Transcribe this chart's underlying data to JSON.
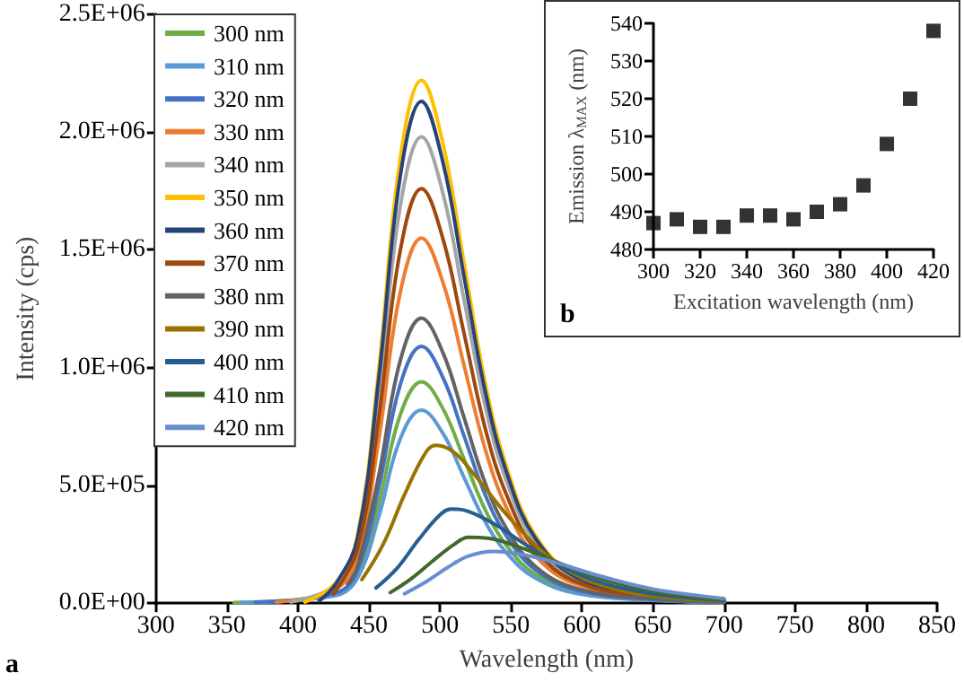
{
  "chart_data": [
    {
      "type": "line",
      "xlabel": "Wavelength (nm)",
      "ylabel": "Intensity (cps)",
      "annotations": [
        "a"
      ],
      "xlim": [
        300,
        850
      ],
      "xticks": [
        300,
        350,
        400,
        450,
        500,
        550,
        600,
        650,
        700,
        750,
        800,
        850
      ],
      "ylim": [
        0,
        2500000
      ],
      "yticks": [
        {
          "value": 0,
          "label": "0.0E+00"
        },
        {
          "value": 500000,
          "label": "5.0E+05"
        },
        {
          "value": 1000000,
          "label": "1.0E+06"
        },
        {
          "value": 1500000,
          "label": "1.5E+06"
        },
        {
          "value": 2000000,
          "label": "2.0E+06"
        },
        {
          "value": 2500000,
          "label": "2.5E+06"
        }
      ],
      "grid": false,
      "legend": "top left",
      "marker": "none",
      "line_style": "solid",
      "series": [
        {
          "name": "300 nm",
          "color": "#70ad47",
          "x": [
            355,
            427,
            442,
            457,
            472,
            487,
            502,
            517,
            532,
            547,
            567,
            597,
            650,
            700
          ],
          "values": [
            3000,
            38000,
            122000,
            423000,
            799000,
            940000,
            827000,
            611000,
            395000,
            244000,
            122000,
            47000,
            14000,
            5000
          ]
        },
        {
          "name": "310 nm",
          "color": "#5b9bd5",
          "x": [
            360,
            427,
            442,
            457,
            472,
            487,
            502,
            517,
            532,
            547,
            567,
            597,
            650,
            700
          ],
          "values": [
            3000,
            33000,
            107000,
            369000,
            697000,
            820000,
            722000,
            533000,
            344000,
            213000,
            107000,
            41000,
            12000,
            4000
          ]
        },
        {
          "name": "320 nm",
          "color": "#4472c4",
          "x": [
            370,
            427,
            442,
            457,
            472,
            487,
            502,
            517,
            532,
            547,
            567,
            597,
            650,
            700
          ],
          "values": [
            5000,
            44000,
            142000,
            491000,
            927000,
            1090000,
            959000,
            709000,
            458000,
            283000,
            142000,
            55000,
            16000,
            5000
          ]
        },
        {
          "name": "330 nm",
          "color": "#ed7d31",
          "x": [
            385,
            427,
            442,
            457,
            472,
            487,
            502,
            517,
            532,
            547,
            567,
            597,
            650,
            700
          ],
          "values": [
            5000,
            62000,
            202000,
            698000,
            1318000,
            1550000,
            1364000,
            1008000,
            651000,
            403000,
            202000,
            78000,
            23000,
            8000
          ]
        },
        {
          "name": "340 nm",
          "color": "#a5a5a5",
          "x": [
            395,
            427,
            442,
            457,
            472,
            487,
            502,
            517,
            532,
            547,
            567,
            597,
            650,
            700
          ],
          "values": [
            5000,
            79000,
            257000,
            891000,
            1683000,
            1980000,
            1742000,
            1287000,
            832000,
            515000,
            257000,
            99000,
            30000,
            10000
          ]
        },
        {
          "name": "350 nm",
          "color": "#ffc000",
          "x": [
            405,
            427,
            442,
            457,
            472,
            487,
            502,
            517,
            532,
            547,
            567,
            597,
            650,
            700
          ],
          "values": [
            5000,
            89000,
            289000,
            999000,
            1887000,
            2220000,
            1954000,
            1443000,
            932000,
            577000,
            289000,
            111000,
            33000,
            11000
          ]
        },
        {
          "name": "360 nm",
          "color": "#264478",
          "x": [
            415,
            427,
            442,
            457,
            472,
            487,
            502,
            517,
            532,
            547,
            567,
            597,
            650,
            700
          ],
          "values": [
            10000,
            85000,
            277000,
            959000,
            1811000,
            2130000,
            1874000,
            1385000,
            895000,
            554000,
            277000,
            107000,
            32000,
            11000
          ]
        },
        {
          "name": "370 nm",
          "color": "#9e480e",
          "x": [
            425,
            442,
            457,
            472,
            487,
            502,
            517,
            532,
            547,
            567,
            597,
            650,
            700
          ],
          "values": [
            40000,
            229000,
            792000,
            1496000,
            1760000,
            1549000,
            1144000,
            739000,
            458000,
            229000,
            88000,
            26000,
            9000
          ]
        },
        {
          "name": "380 nm",
          "color": "#636363",
          "x": [
            435,
            442,
            457,
            472,
            487,
            502,
            517,
            532,
            547,
            567,
            597,
            650,
            700
          ],
          "values": [
            80000,
            157000,
            545000,
            1029000,
            1210000,
            1065000,
            787000,
            508000,
            315000,
            157000,
            61000,
            18000,
            6000
          ]
        },
        {
          "name": "390 nm",
          "color": "#997300",
          "x": [
            445,
            460,
            475,
            490,
            497,
            510,
            525,
            545,
            565,
            590,
            620,
            660,
            700
          ],
          "values": [
            100000,
            250000,
            460000,
            640000,
            670000,
            640000,
            540000,
            390000,
            260000,
            140000,
            65000,
            25000,
            10000
          ]
        },
        {
          "name": "400 nm",
          "color": "#255e91",
          "x": [
            455,
            470,
            485,
            500,
            508,
            520,
            540,
            560,
            585,
            615,
            650,
            700
          ],
          "values": [
            65000,
            150000,
            270000,
            375000,
            400000,
            390000,
            330000,
            250000,
            160000,
            85000,
            40000,
            12000
          ]
        },
        {
          "name": "410 nm",
          "color": "#43682b",
          "x": [
            465,
            480,
            495,
            510,
            520,
            535,
            555,
            580,
            610,
            650,
            700
          ],
          "values": [
            45000,
            105000,
            180000,
            250000,
            280000,
            275000,
            240000,
            180000,
            110000,
            50000,
            15000
          ]
        },
        {
          "name": "420 nm",
          "color": "#698ed0",
          "x": [
            475,
            490,
            505,
            520,
            538,
            555,
            580,
            610,
            650,
            700
          ],
          "values": [
            40000,
            90000,
            150000,
            200000,
            220000,
            210000,
            175000,
            120000,
            60000,
            20000
          ]
        }
      ]
    },
    {
      "type": "scatter",
      "xlabel": "Excitation wavelength (nm)",
      "ylabel": "Emission λ$_{MAX}$ (nm)",
      "annotations": [
        "b"
      ],
      "xlim": [
        300,
        420
      ],
      "xticks": [
        300,
        320,
        340,
        360,
        380,
        400,
        420
      ],
      "ylim": [
        480,
        540
      ],
      "yticks": [
        480,
        490,
        500,
        510,
        520,
        530,
        540
      ],
      "grid": false,
      "marker": "square",
      "x": [
        300,
        310,
        320,
        330,
        340,
        350,
        360,
        370,
        380,
        390,
        400,
        410,
        420
      ],
      "series": [
        {
          "color": "#000000",
          "values": [
            487,
            488,
            486,
            486,
            489,
            489,
            488,
            490,
            492,
            497,
            508,
            520,
            538
          ]
        }
      ]
    }
  ]
}
